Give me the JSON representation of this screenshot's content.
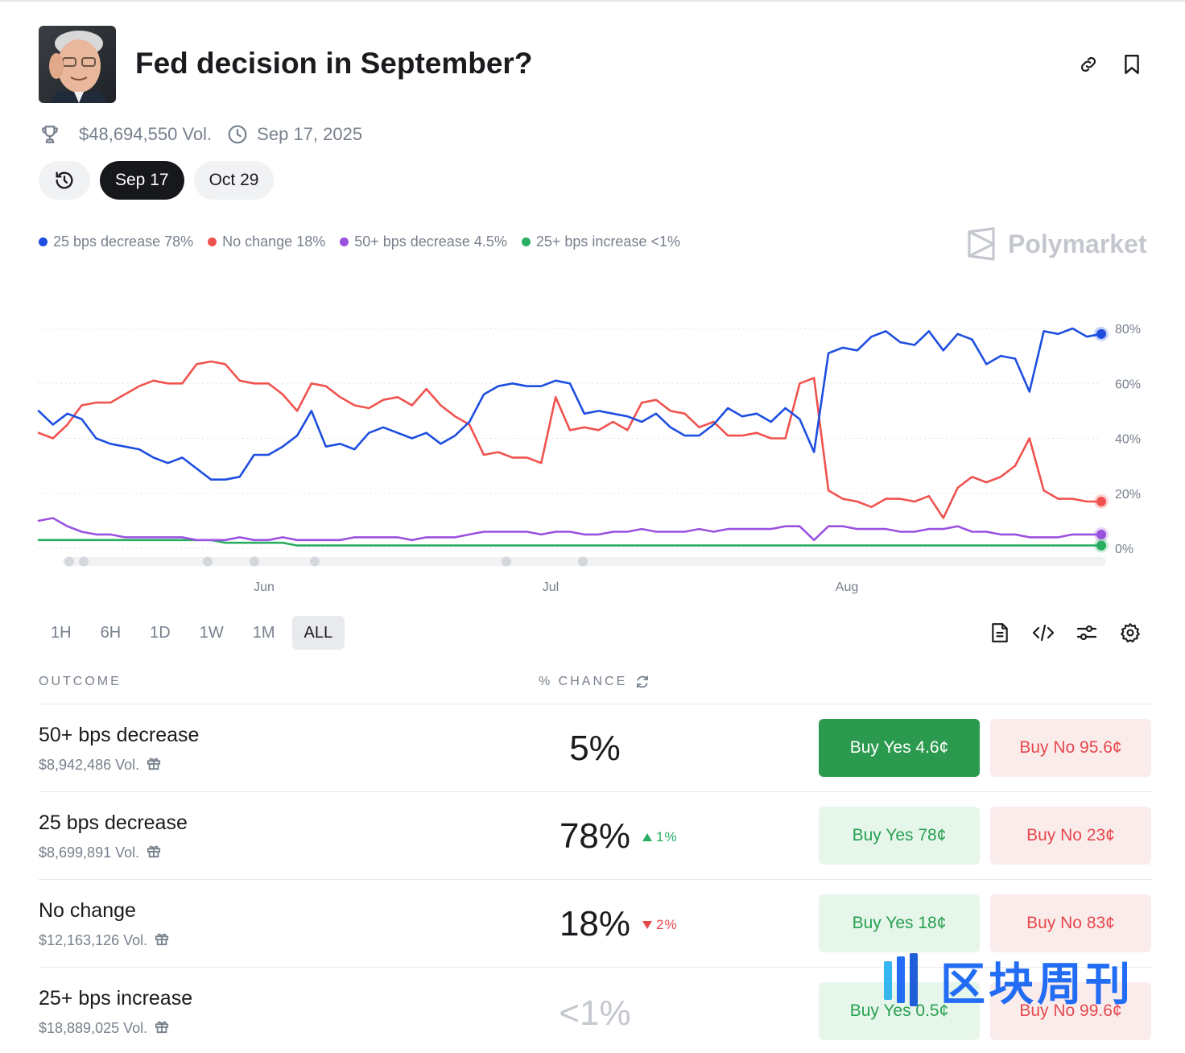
{
  "header": {
    "title": "Fed decision in September?",
    "volume": "$48,694,550 Vol.",
    "date": "Sep 17, 2025"
  },
  "chips": [
    "Sep 17",
    "Oct 29"
  ],
  "legend": [
    {
      "label": "25 bps decrease 78%",
      "color": "#1d4ee0"
    },
    {
      "label": "No change 18%",
      "color": "#f0534f"
    },
    {
      "label": "50+ bps decrease 4.5%",
      "color": "#9b51e0"
    },
    {
      "label": "25+ bps increase <1%",
      "color": "#27ae60"
    }
  ],
  "brand": "Polymarket",
  "chart_data": {
    "type": "line",
    "x_ticks": [
      "Jun",
      "Jul",
      "Aug"
    ],
    "y_ticks": [
      "80%",
      "60%",
      "40%",
      "20%",
      "0%"
    ],
    "ylim": [
      0,
      80
    ],
    "grid": true,
    "series": [
      {
        "name": "25 bps decrease",
        "color": "#1d4ee0",
        "values": [
          50,
          45,
          49,
          47,
          40,
          38,
          37,
          36,
          33,
          31,
          33,
          29,
          25,
          25,
          26,
          34,
          34,
          37,
          41,
          50,
          37,
          38,
          36,
          42,
          44,
          42,
          40,
          42,
          38,
          41,
          46,
          56,
          59,
          60,
          59,
          59,
          61,
          60,
          49,
          50,
          49,
          48,
          46,
          49,
          44,
          41,
          41,
          45,
          51,
          48,
          49,
          46,
          51,
          47,
          35,
          71,
          73,
          72,
          77,
          79,
          75,
          74,
          79,
          72,
          78,
          76,
          67,
          70,
          69,
          57,
          79,
          78,
          80,
          77,
          78
        ]
      },
      {
        "name": "No change",
        "color": "#f0534f",
        "values": [
          42,
          40,
          45,
          52,
          53,
          53,
          56,
          59,
          61,
          60,
          60,
          67,
          68,
          67,
          61,
          60,
          60,
          56,
          50,
          60,
          59,
          55,
          52,
          51,
          54,
          55,
          52,
          58,
          52,
          48,
          45,
          34,
          35,
          33,
          33,
          31,
          55,
          43,
          44,
          43,
          46,
          43,
          53,
          54,
          50,
          49,
          44,
          46,
          41,
          41,
          42,
          40,
          40,
          60,
          62,
          21,
          18,
          17,
          15,
          18,
          18,
          17,
          19,
          11,
          22,
          26,
          24,
          26,
          30,
          40,
          21,
          18,
          18,
          17,
          17
        ]
      },
      {
        "name": "50+ bps decrease",
        "color": "#9b51e0",
        "values": [
          10,
          11,
          8,
          6,
          5,
          5,
          4,
          4,
          4,
          4,
          4,
          3,
          3,
          3,
          4,
          3,
          3,
          4,
          3,
          3,
          3,
          3,
          4,
          4,
          4,
          4,
          3,
          4,
          4,
          4,
          5,
          6,
          6,
          6,
          6,
          5,
          6,
          6,
          5,
          5,
          6,
          6,
          7,
          6,
          6,
          6,
          7,
          6,
          7,
          7,
          7,
          7,
          8,
          8,
          3,
          8,
          8,
          7,
          7,
          7,
          6,
          6,
          7,
          7,
          8,
          6,
          6,
          5,
          5,
          4,
          4,
          4,
          5,
          5,
          5
        ]
      },
      {
        "name": "25+ bps increase",
        "color": "#27ae60",
        "values": [
          3,
          3,
          3,
          3,
          3,
          3,
          3,
          3,
          3,
          3,
          3,
          3,
          3,
          2,
          2,
          2,
          2,
          2,
          1,
          1,
          1,
          1,
          1,
          1,
          1,
          1,
          1,
          1,
          1,
          1,
          1,
          1,
          1,
          1,
          1,
          1,
          1,
          1,
          1,
          1,
          1,
          1,
          1,
          1,
          1,
          1,
          1,
          1,
          1,
          1,
          1,
          1,
          1,
          1,
          1,
          1,
          1,
          1,
          1,
          1,
          1,
          1,
          1,
          1,
          1,
          1,
          1,
          1,
          1,
          1,
          1,
          1,
          1,
          1,
          1
        ]
      }
    ]
  },
  "ranges": [
    "1H",
    "6H",
    "1D",
    "1W",
    "1M",
    "ALL"
  ],
  "table": {
    "outcome_header": "OUTCOME",
    "chance_header": "% CHANCE",
    "rows": [
      {
        "name": "50+ bps decrease",
        "volume": "$8,942,486 Vol.",
        "chance": "5%",
        "delta": "",
        "yes": "Buy Yes 4.6¢",
        "no": "Buy No 95.6¢"
      },
      {
        "name": "25 bps decrease",
        "volume": "$8,699,891 Vol.",
        "chance": "78%",
        "delta": "1%",
        "yes": "Buy Yes 78¢",
        "no": "Buy No 23¢"
      },
      {
        "name": "No change",
        "volume": "$12,163,126 Vol.",
        "chance": "18%",
        "delta": "2%",
        "yes": "Buy Yes 18¢",
        "no": "Buy No 83¢"
      },
      {
        "name": "25+ bps increase",
        "volume": "$18,889,025 Vol.",
        "chance": "<1%",
        "delta": "",
        "yes": "Buy Yes 0.5¢",
        "no": "Buy No 99.6¢"
      }
    ]
  },
  "watermark": "区块周刊"
}
